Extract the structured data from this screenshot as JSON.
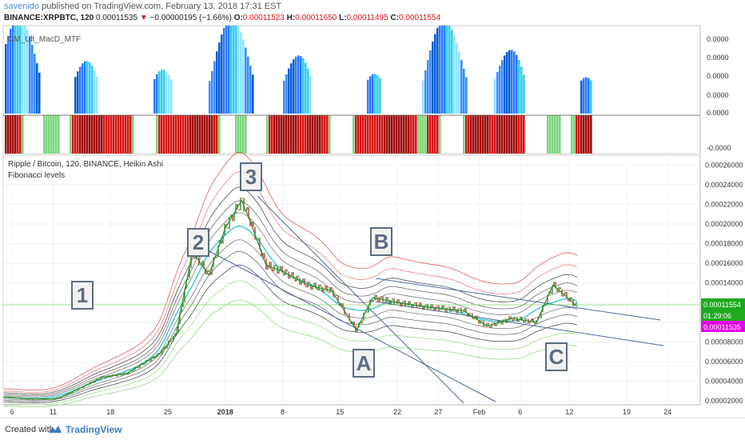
{
  "header": {
    "author": "savenido",
    "published": "published on TradingView.com, February 13, 2018 17:31 EST",
    "symbol": "BINANCE:XRPBTC, 120",
    "last": "0.00011535",
    "change": "−0.00000195 (−1.66%)",
    "o_label": "O:",
    "o_value": "0.00011523",
    "h_label": "H:",
    "h_value": "0.00011650",
    "l_label": "L:",
    "l_value": "0.00011495",
    "c_label": "C:",
    "c_value": "0.00011554"
  },
  "indicator": {
    "title": "CM_Ult_MacD_MTF",
    "axis_labels": [
      "0.0000",
      "0.0000",
      "0.0000",
      "0.0000",
      "0.0000",
      "-0.0000"
    ]
  },
  "main": {
    "title": "Ripple / Bitcoin, 120, BINANCE, Heikin Ashi",
    "subtitle": "Fibonacci levels",
    "price_badges": {
      "last": "0.00011554",
      "countdown": "01:29:06",
      "close": "0.00011535"
    },
    "wave_labels": [
      "1",
      "2",
      "3",
      "A",
      "B",
      "C"
    ]
  },
  "chart_data": {
    "type": "line",
    "title": "Ripple / Bitcoin, 120, BINANCE, Heikin Ashi",
    "x_tick_labels": [
      "6",
      "11",
      "18",
      "25",
      "2018",
      "8",
      "15",
      "22",
      "27",
      "Feb",
      "6",
      "12",
      "19",
      "24"
    ],
    "y_tick_labels": [
      "0.00026000",
      "0.00024000",
      "0.00022000",
      "0.00020000",
      "0.00018000",
      "0.00016000",
      "0.00014000",
      "0.00012000",
      "0.00010000",
      "0.00008000",
      "0.00006000",
      "0.00004000",
      "0.00002000"
    ],
    "ylim": [
      1.6e-05,
      0.00027
    ],
    "series": [
      {
        "color": "#2d8f2d",
        "points": [
          [
            "Dec 5",
            2.4e-05
          ],
          [
            "Dec 8",
            2.2e-05
          ],
          [
            "Dec 11",
            2.2e-05
          ],
          [
            "Dec 12",
            2.4e-05
          ],
          [
            "Dec 14",
            3.2e-05
          ],
          [
            "Dec 17",
            4.4e-05
          ],
          [
            "Dec 20",
            4.8e-05
          ],
          [
            "Dec 22",
            5.8e-05
          ],
          [
            "Dec 24",
            6.8e-05
          ],
          [
            "Dec 26",
            8.8e-05
          ],
          [
            "Dec 28",
            0.000172
          ],
          [
            "Dec 30",
            0.000148
          ],
          [
            "Jan 1",
            0.000196
          ],
          [
            "Jan 3",
            0.000224
          ],
          [
            "Jan 4",
            0.000204
          ],
          [
            "Jan 6",
            0.000158
          ],
          [
            "Jan 8",
            0.000152
          ],
          [
            "Jan 11",
            0.000138
          ],
          [
            "Jan 14",
            0.000132
          ],
          [
            "Jan 17",
            9.2e-05
          ],
          [
            "Jan 19",
            0.000125
          ],
          [
            "Jan 22",
            0.00012
          ],
          [
            "Jan 26",
            0.000115
          ],
          [
            "Jan 30",
            0.000112
          ],
          [
            "Feb 2",
            9.6e-05
          ],
          [
            "Feb 5",
            0.000104
          ],
          [
            "Feb 8",
            0.0001
          ],
          [
            "Feb 10",
            0.000138
          ],
          [
            "Feb 13",
            0.000116
          ]
        ]
      }
    ],
    "grid": true
  }
}
